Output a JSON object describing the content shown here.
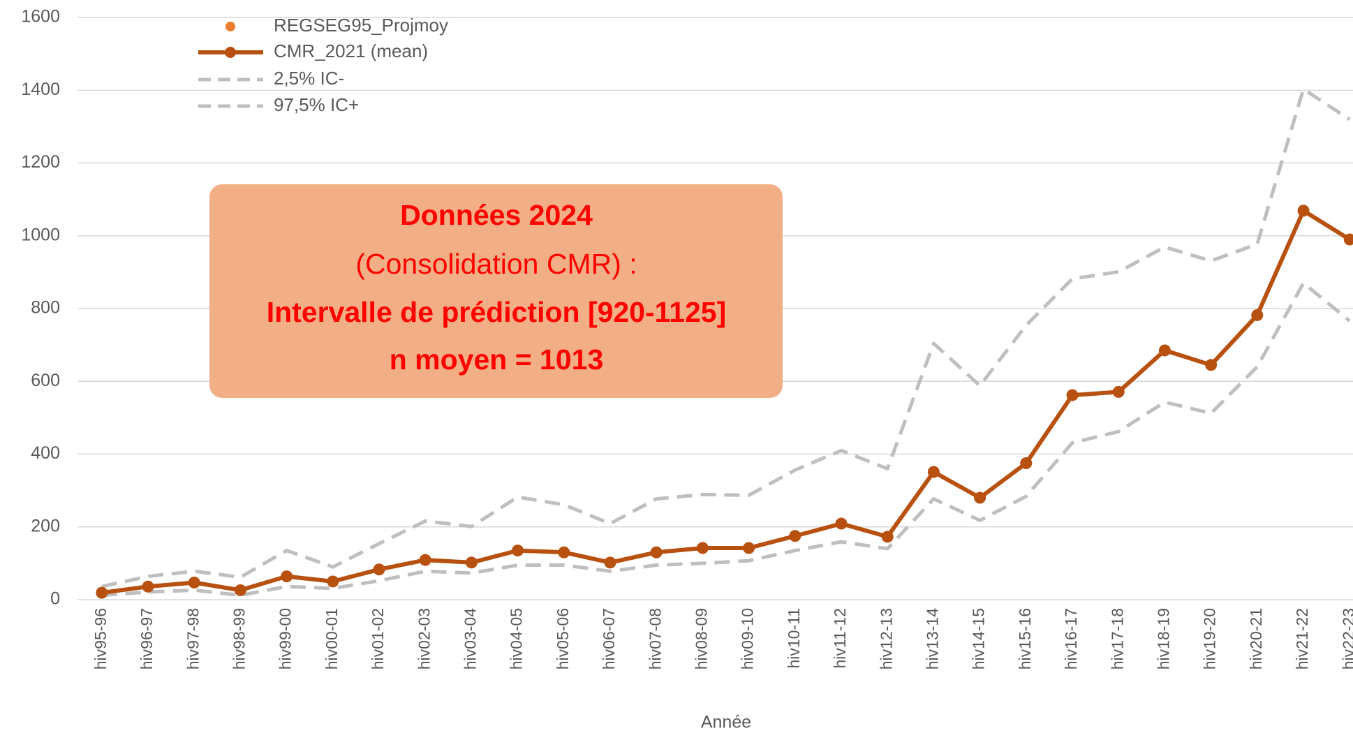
{
  "chart_data": {
    "type": "line",
    "x_label": "Année",
    "categories": [
      "hiv95-96",
      "hiv96-97",
      "hiv97-98",
      "hiv98-99",
      "hiv99-00",
      "hiv00-01",
      "hiv01-02",
      "hiv02-03",
      "hiv03-04",
      "hiv04-05",
      "hiv05-06",
      "hiv06-07",
      "hiv07-08",
      "hiv08-09",
      "hiv09-10",
      "hiv10-11",
      "hiv11-12",
      "hiv12-13",
      "hiv13-14",
      "hiv14-15",
      "hiv15-16",
      "hiv16-17",
      "hiv17-18",
      "hiv18-19",
      "hiv19-20",
      "hiv20-21",
      "hiv21-22",
      "hiv22-23"
    ],
    "series": [
      {
        "name": "REGSEG95_Projmoy",
        "color": "#ed7d31",
        "style": "marker",
        "values": [
          null,
          null,
          null,
          null,
          null,
          null,
          null,
          null,
          null,
          null,
          null,
          null,
          null,
          null,
          null,
          null,
          null,
          null,
          null,
          null,
          null,
          null,
          null,
          null,
          null,
          null,
          null,
          null
        ]
      },
      {
        "name": "CMR_2021 (mean)",
        "color": "#b8500f",
        "style": "line-marker",
        "values": [
          19,
          36,
          47,
          26,
          64,
          50,
          83,
          109,
          102,
          135,
          130,
          102,
          130,
          142,
          142,
          175,
          209,
          173,
          351,
          280,
          375,
          562,
          571,
          685,
          645,
          782,
          1069,
          990
        ]
      },
      {
        "name": "2,5%  IC-",
        "color": "#bfbfbf",
        "style": "dashed",
        "values": [
          12,
          21,
          26,
          12,
          36,
          31,
          52,
          78,
          73,
          95,
          95,
          78,
          95,
          100,
          107,
          135,
          159,
          140,
          277,
          218,
          284,
          431,
          462,
          543,
          512,
          640,
          870,
          766
        ]
      },
      {
        "name": "97,5% IC+",
        "color": "#bfbfbf",
        "style": "dashed",
        "values": [
          36,
          64,
          78,
          62,
          135,
          90,
          154,
          216,
          201,
          282,
          261,
          209,
          277,
          289,
          287,
          356,
          410,
          360,
          704,
          588,
          754,
          882,
          901,
          969,
          931,
          977,
          1403,
          1320
        ]
      }
    ],
    "ylim": [
      0,
      1600
    ],
    "yticks": [
      0,
      200,
      400,
      600,
      800,
      1000,
      1200,
      1400,
      1600
    ],
    "grid": true,
    "legend": "top-left",
    "annotation": [
      "Données 2024",
      "(Consolidation CMR) :",
      "Intervalle de prédiction [920-1125]",
      "n moyen = 1013"
    ]
  }
}
